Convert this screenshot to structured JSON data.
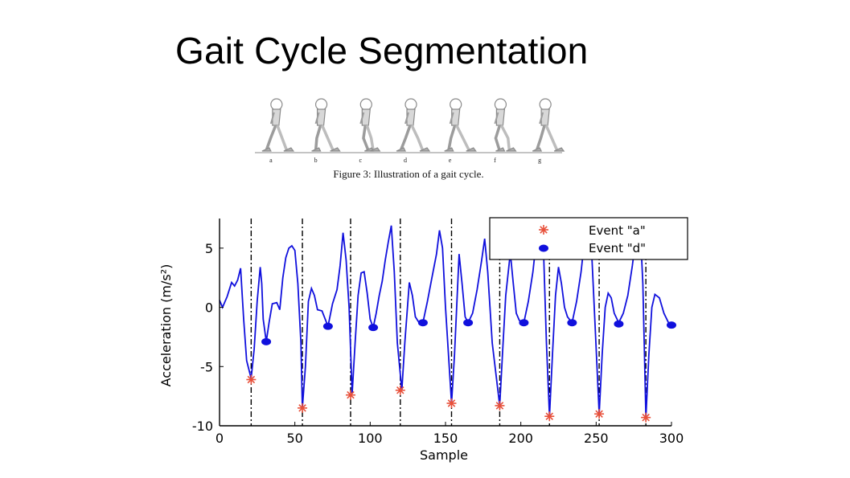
{
  "slide": {
    "title": "Gait Cycle Segmentation"
  },
  "gait_figure": {
    "phase_labels": [
      "a",
      "b",
      "c",
      "d",
      "e",
      "f",
      "g"
    ],
    "caption": "Figure 3: Illustration of a gait cycle."
  },
  "chart_data": {
    "type": "line",
    "title": "",
    "xlabel": "Sample",
    "ylabel": "Acceleration (m/s²)",
    "xlim": [
      0,
      300
    ],
    "ylim": [
      -10,
      7.5
    ],
    "xticks": [
      0,
      50,
      100,
      150,
      200,
      250,
      300
    ],
    "yticks": [
      -10,
      -5,
      0,
      5
    ],
    "grid": false,
    "legend_position": "top-right",
    "line_color": "#1010dd",
    "event_a_color": "#e8503a",
    "event_d_color": "#1010dd",
    "series": [
      {
        "points": [
          [
            0,
            0.6
          ],
          [
            2,
            0.0
          ],
          [
            5,
            0.9
          ],
          [
            8,
            2.1
          ],
          [
            10,
            1.8
          ],
          [
            12,
            2.3
          ],
          [
            14,
            3.3
          ],
          [
            16,
            -1.0
          ],
          [
            18,
            -4.5
          ],
          [
            21,
            -6.0
          ],
          [
            23,
            -3.5
          ],
          [
            25,
            0.5
          ],
          [
            27,
            3.4
          ],
          [
            28,
            2.0
          ],
          [
            29,
            -1.0
          ],
          [
            31,
            -2.9
          ],
          [
            33,
            -1.2
          ],
          [
            35,
            0.3
          ],
          [
            38,
            0.4
          ],
          [
            40,
            -0.2
          ],
          [
            42,
            2.5
          ],
          [
            44,
            4.2
          ],
          [
            46,
            5.0
          ],
          [
            48,
            5.2
          ],
          [
            50,
            4.8
          ],
          [
            52,
            2.0
          ],
          [
            54,
            -3.0
          ],
          [
            55,
            -8.5
          ],
          [
            57,
            -5.0
          ],
          [
            59,
            0.5
          ],
          [
            61,
            1.6
          ],
          [
            63,
            1.0
          ],
          [
            65,
            -0.2
          ],
          [
            68,
            -0.3
          ],
          [
            72,
            -1.6
          ],
          [
            75,
            0.3
          ],
          [
            78,
            1.5
          ],
          [
            80,
            3.5
          ],
          [
            82,
            6.3
          ],
          [
            84,
            4.0
          ],
          [
            86,
            0.0
          ],
          [
            88,
            -7.3
          ],
          [
            90,
            -3.0
          ],
          [
            92,
            1.0
          ],
          [
            94,
            2.9
          ],
          [
            96,
            3.0
          ],
          [
            98,
            1.2
          ],
          [
            100,
            -1.0
          ],
          [
            102,
            -1.7
          ],
          [
            104,
            -0.5
          ],
          [
            106,
            1.0
          ],
          [
            108,
            2.2
          ],
          [
            110,
            4.0
          ],
          [
            112,
            5.5
          ],
          [
            114,
            6.9
          ],
          [
            116,
            3.0
          ],
          [
            118,
            -3.0
          ],
          [
            121,
            -7.0
          ],
          [
            123,
            -3.0
          ],
          [
            126,
            2.1
          ],
          [
            128,
            1.0
          ],
          [
            130,
            -0.8
          ],
          [
            132,
            -1.2
          ],
          [
            135,
            -1.3
          ],
          [
            138,
            0.5
          ],
          [
            141,
            2.5
          ],
          [
            144,
            4.5
          ],
          [
            146,
            6.5
          ],
          [
            148,
            5.0
          ],
          [
            150,
            0.0
          ],
          [
            154,
            -8.1
          ],
          [
            156,
            -4.0
          ],
          [
            159,
            4.5
          ],
          [
            161,
            2.0
          ],
          [
            163,
            -0.8
          ],
          [
            165,
            -1.3
          ],
          [
            168,
            -0.5
          ],
          [
            171,
            1.5
          ],
          [
            174,
            4.0
          ],
          [
            176,
            5.8
          ],
          [
            178,
            3.0
          ],
          [
            181,
            -3.0
          ],
          [
            186,
            -8.3
          ],
          [
            188,
            -3.5
          ],
          [
            190,
            1.0
          ],
          [
            193,
            4.6
          ],
          [
            195,
            2.0
          ],
          [
            197,
            -0.5
          ],
          [
            199,
            -1.1
          ],
          [
            202,
            -1.3
          ],
          [
            205,
            0.5
          ],
          [
            208,
            3.0
          ],
          [
            211,
            6.5
          ],
          [
            213,
            9.0
          ],
          [
            215,
            5.0
          ],
          [
            217,
            -3.0
          ],
          [
            219,
            -9.2
          ],
          [
            221,
            -4.0
          ],
          [
            223,
            1.0
          ],
          [
            225,
            3.4
          ],
          [
            227,
            2.0
          ],
          [
            229,
            0.0
          ],
          [
            231,
            -0.8
          ],
          [
            234,
            -1.3
          ],
          [
            237,
            0.5
          ],
          [
            240,
            3.0
          ],
          [
            243,
            6.5
          ],
          [
            246,
            9.0
          ],
          [
            248,
            2.0
          ],
          [
            252,
            -9.0
          ],
          [
            254,
            -4.0
          ],
          [
            256,
            0.0
          ],
          [
            258,
            1.2
          ],
          [
            260,
            0.8
          ],
          [
            262,
            -0.5
          ],
          [
            265,
            -1.3
          ],
          [
            268,
            -0.5
          ],
          [
            271,
            1.0
          ],
          [
            274,
            3.5
          ],
          [
            277,
            6.5
          ],
          [
            279,
            9.0
          ],
          [
            281,
            2.0
          ],
          [
            283,
            -9.3
          ],
          [
            285,
            -4.0
          ],
          [
            287,
            0.0
          ],
          [
            289,
            1.1
          ],
          [
            292,
            0.8
          ],
          [
            295,
            -0.5
          ],
          [
            298,
            -1.3
          ],
          [
            300,
            -1.5
          ]
        ]
      }
    ],
    "event_a": {
      "label": "Event \"a\"",
      "points": [
        [
          21,
          -6.1
        ],
        [
          55,
          -8.5
        ],
        [
          87,
          -7.4
        ],
        [
          120,
          -7.0
        ],
        [
          154,
          -8.1
        ],
        [
          186,
          -8.3
        ],
        [
          219,
          -9.2
        ],
        [
          252,
          -9.0
        ],
        [
          283,
          -9.3
        ]
      ]
    },
    "event_d": {
      "label": "Event \"d\"",
      "points": [
        [
          31,
          -2.9
        ],
        [
          72,
          -1.6
        ],
        [
          102,
          -1.7
        ],
        [
          135,
          -1.3
        ],
        [
          165,
          -1.3
        ],
        [
          202,
          -1.3
        ],
        [
          234,
          -1.3
        ],
        [
          265,
          -1.4
        ],
        [
          300,
          -1.5
        ]
      ]
    },
    "cycle_boundaries": [
      21,
      55,
      87,
      120,
      154,
      186,
      219,
      252,
      283
    ]
  }
}
